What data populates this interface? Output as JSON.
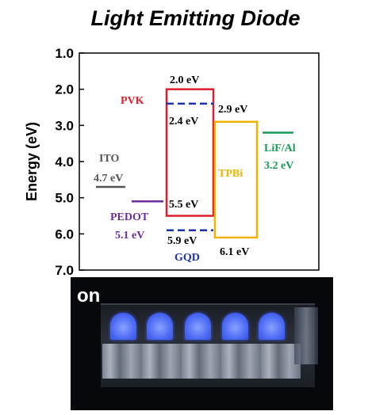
{
  "title": "Light Emitting Diode",
  "ylabel": "Energy (eV)",
  "yticks": [
    "1.0",
    "2.0",
    "3.0",
    "4.0",
    "5.0",
    "6.0",
    "7.0"
  ],
  "photo_label": "on",
  "labels": {
    "pvk": "PVK",
    "ito": "ITO",
    "ito_val": "4.7 eV",
    "pedot": "PEDOT",
    "pedot_val": "5.1 eV",
    "tpbi": "TPBi",
    "lifal": "LiF/Al",
    "lifal_val": "3.2 eV",
    "gqd": "GQD",
    "pvk_top": "2.0 eV",
    "gqd_top": "2.4 eV",
    "tpbi_top": "2.9 eV",
    "pvk_bottom": "5.5 eV",
    "gqd_bottom": "5.9 eV",
    "tpbi_bottom": "6.1 eV"
  },
  "colors": {
    "pvk": "#dd1f2b",
    "ito": "#555555",
    "pedot": "#6a2e9e",
    "tpbi": "#f0b400",
    "lifal": "#1a9a56",
    "gqd": "#1f2fa8",
    "axis": "#000000"
  },
  "chart_data": {
    "type": "energy-level-diagram",
    "ylim": [
      1.0,
      7.0
    ],
    "y_inverted": true,
    "layers": [
      {
        "name": "ITO",
        "level": 4.7
      },
      {
        "name": "PEDOT",
        "level": 5.1
      },
      {
        "name": "PVK",
        "lumo": 2.0,
        "homo": 5.5
      },
      {
        "name": "GQD",
        "lumo": 2.4,
        "homo": 5.9
      },
      {
        "name": "TPBi",
        "lumo": 2.9,
        "homo": 6.1
      },
      {
        "name": "LiF/Al",
        "level": 3.2
      }
    ]
  }
}
